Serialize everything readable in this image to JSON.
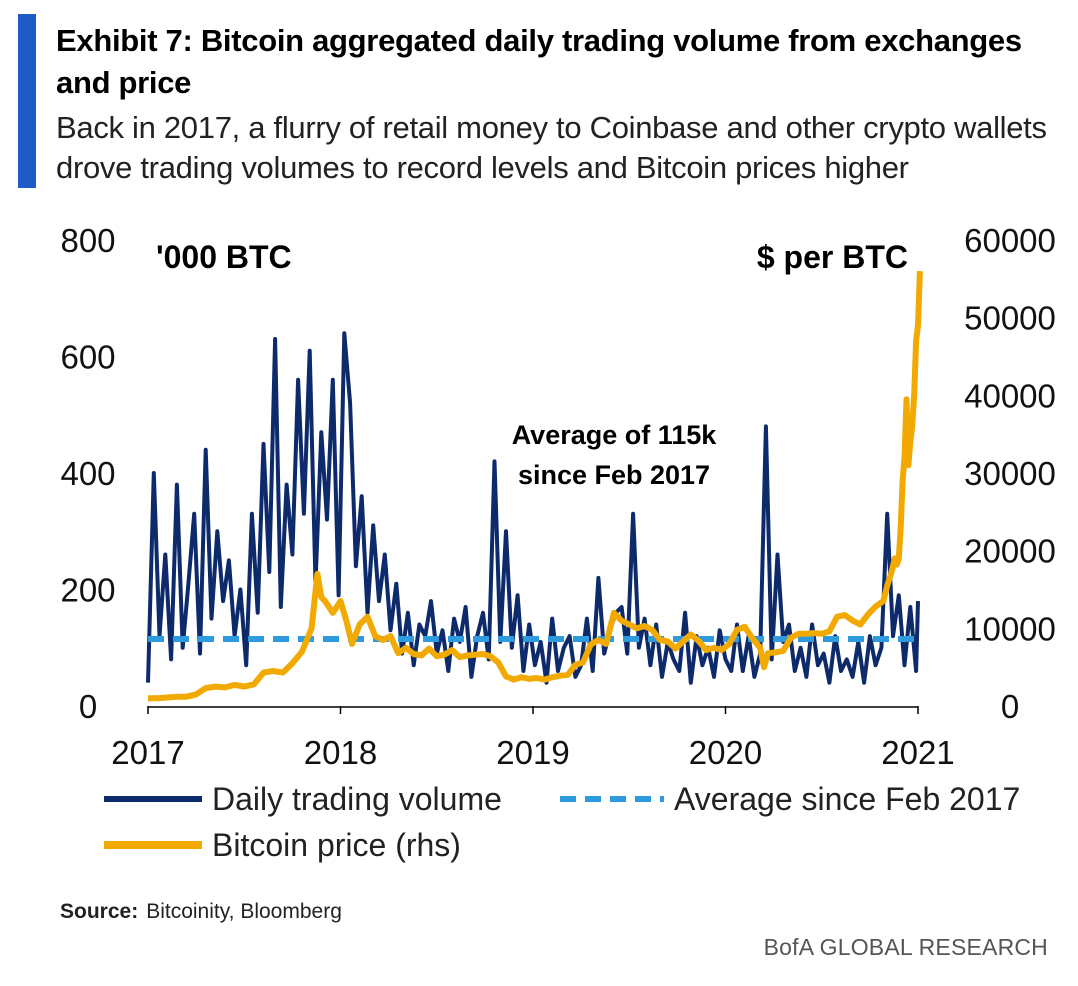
{
  "header": {
    "title": "Exhibit 7: Bitcoin aggregated daily trading volume from exchanges and price",
    "subtitle": "Back in 2017, a flurry of retail money to Coinbase and other crypto wallets drove trading volumes to record levels and Bitcoin prices higher"
  },
  "colors": {
    "volume": "#0D2A6B",
    "average": "#2E9BDF",
    "price": "#F2A900",
    "accent": "#1F5BC6"
  },
  "chart_data": {
    "type": "line",
    "title": "Bitcoin aggregated daily trading volume from exchanges and price",
    "left_axis_label": "'000 BTC",
    "right_axis_label": "$ per BTC",
    "ylim_left": [
      0,
      800
    ],
    "ylim_right": [
      0,
      60000
    ],
    "left_ticks": [
      "0",
      "200",
      "400",
      "600",
      "800"
    ],
    "right_ticks": [
      "0",
      "10000",
      "20000",
      "30000",
      "40000",
      "50000",
      "60000"
    ],
    "x_ticks": [
      "2017",
      "2018",
      "2019",
      "2020",
      "2021"
    ],
    "xlim": [
      2017.0,
      2021.0
    ],
    "annotation": {
      "line1": "Average of 115k",
      "line2": "since Feb 2017"
    },
    "series": [
      {
        "name": "Daily trading volume",
        "axis": "left",
        "style": "solid",
        "x": [
          2017.0,
          2017.03,
          2017.06,
          2017.09,
          2017.12,
          2017.15,
          2017.18,
          2017.21,
          2017.24,
          2017.27,
          2017.3,
          2017.33,
          2017.36,
          2017.39,
          2017.42,
          2017.45,
          2017.48,
          2017.51,
          2017.54,
          2017.57,
          2017.6,
          2017.63,
          2017.66,
          2017.69,
          2017.72,
          2017.75,
          2017.78,
          2017.81,
          2017.84,
          2017.87,
          2017.9,
          2017.93,
          2017.96,
          2017.99,
          2018.02,
          2018.05,
          2018.08,
          2018.11,
          2018.14,
          2018.17,
          2018.2,
          2018.23,
          2018.26,
          2018.29,
          2018.32,
          2018.35,
          2018.38,
          2018.41,
          2018.44,
          2018.47,
          2018.5,
          2018.53,
          2018.56,
          2018.59,
          2018.62,
          2018.65,
          2018.68,
          2018.71,
          2018.74,
          2018.77,
          2018.8,
          2018.83,
          2018.86,
          2018.89,
          2018.92,
          2018.95,
          2018.98,
          2019.01,
          2019.04,
          2019.07,
          2019.1,
          2019.13,
          2019.16,
          2019.19,
          2019.22,
          2019.25,
          2019.28,
          2019.31,
          2019.34,
          2019.37,
          2019.4,
          2019.43,
          2019.46,
          2019.49,
          2019.52,
          2019.55,
          2019.58,
          2019.61,
          2019.64,
          2019.67,
          2019.7,
          2019.73,
          2019.76,
          2019.79,
          2019.82,
          2019.85,
          2019.88,
          2019.91,
          2019.94,
          2019.97,
          2020.0,
          2020.03,
          2020.06,
          2020.09,
          2020.12,
          2020.15,
          2020.18,
          2020.21,
          2020.24,
          2020.27,
          2020.3,
          2020.33,
          2020.36,
          2020.39,
          2020.42,
          2020.45,
          2020.48,
          2020.51,
          2020.54,
          2020.57,
          2020.6,
          2020.63,
          2020.66,
          2020.69,
          2020.72,
          2020.75,
          2020.78,
          2020.81,
          2020.84,
          2020.87,
          2020.9,
          2020.93,
          2020.96,
          2020.99,
          2021.0
        ],
        "values": [
          40,
          400,
          120,
          260,
          80,
          380,
          100,
          210,
          330,
          90,
          440,
          150,
          300,
          180,
          250,
          120,
          200,
          70,
          330,
          160,
          450,
          230,
          630,
          170,
          380,
          260,
          560,
          330,
          610,
          210,
          470,
          320,
          560,
          190,
          640,
          520,
          240,
          360,
          160,
          310,
          180,
          260,
          130,
          210,
          90,
          160,
          70,
          140,
          120,
          180,
          90,
          130,
          60,
          150,
          110,
          170,
          50,
          120,
          160,
          80,
          420,
          110,
          300,
          100,
          190,
          60,
          140,
          70,
          110,
          40,
          150,
          60,
          100,
          120,
          50,
          70,
          150,
          60,
          220,
          90,
          130,
          160,
          170,
          90,
          330,
          100,
          150,
          70,
          140,
          50,
          110,
          80,
          60,
          160,
          40,
          120,
          70,
          100,
          50,
          130,
          80,
          60,
          140,
          60,
          120,
          50,
          90,
          480,
          80,
          260,
          110,
          140,
          60,
          100,
          50,
          140,
          70,
          90,
          40,
          120,
          60,
          80,
          50,
          110,
          40,
          120,
          70,
          100,
          330,
          120,
          190,
          70,
          170,
          60,
          180
        ]
      },
      {
        "name": "Average since Feb 2017",
        "axis": "left",
        "style": "dashed",
        "x": [
          2017.0,
          2021.0
        ],
        "values": [
          115,
          115
        ]
      },
      {
        "name": "Bitcoin price (rhs)",
        "axis": "right",
        "style": "solid",
        "x": [
          2017.0,
          2017.05,
          2017.1,
          2017.15,
          2017.2,
          2017.25,
          2017.3,
          2017.35,
          2017.4,
          2017.45,
          2017.5,
          2017.55,
          2017.6,
          2017.65,
          2017.7,
          2017.75,
          2017.8,
          2017.85,
          2017.88,
          2017.9,
          2017.92,
          2017.96,
          2018.0,
          2018.03,
          2018.06,
          2018.1,
          2018.14,
          2018.18,
          2018.22,
          2018.26,
          2018.3,
          2018.34,
          2018.38,
          2018.42,
          2018.46,
          2018.5,
          2018.54,
          2018.58,
          2018.62,
          2018.66,
          2018.7,
          2018.74,
          2018.78,
          2018.82,
          2018.86,
          2018.9,
          2018.94,
          2018.98,
          2019.02,
          2019.06,
          2019.1,
          2019.14,
          2019.18,
          2019.22,
          2019.26,
          2019.3,
          2019.34,
          2019.38,
          2019.42,
          2019.46,
          2019.5,
          2019.54,
          2019.58,
          2019.62,
          2019.66,
          2019.7,
          2019.74,
          2019.78,
          2019.82,
          2019.86,
          2019.9,
          2019.94,
          2019.98,
          2020.02,
          2020.06,
          2020.1,
          2020.14,
          2020.18,
          2020.2,
          2020.22,
          2020.26,
          2020.3,
          2020.34,
          2020.38,
          2020.42,
          2020.46,
          2020.5,
          2020.54,
          2020.58,
          2020.62,
          2020.66,
          2020.7,
          2020.74,
          2020.78,
          2020.82,
          2020.84,
          2020.86,
          2020.88,
          2020.89,
          2020.9,
          2020.91,
          2020.92,
          2020.93,
          2020.94,
          2020.95,
          2020.96,
          2020.97,
          2020.98,
          2020.99,
          2021.0,
          2021.01
        ],
        "values": [
          1000,
          1000,
          1100,
          1200,
          1200,
          1500,
          2300,
          2500,
          2400,
          2700,
          2500,
          2800,
          4300,
          4500,
          4300,
          5500,
          7000,
          10000,
          17000,
          14000,
          13500,
          12000,
          13500,
          11000,
          8000,
          10500,
          11500,
          9000,
          8500,
          9000,
          6800,
          7500,
          6700,
          6500,
          7400,
          6400,
          6600,
          7200,
          6300,
          6500,
          6600,
          6700,
          6400,
          5600,
          3800,
          3400,
          3700,
          3500,
          3600,
          3400,
          3700,
          3900,
          4000,
          5300,
          5600,
          7900,
          8500,
          8000,
          12000,
          11000,
          10500,
          10000,
          10300,
          9800,
          8500,
          8300,
          7400,
          8300,
          9200,
          8400,
          7200,
          7500,
          7200,
          8000,
          9800,
          10200,
          8700,
          7500,
          5000,
          6800,
          6900,
          7100,
          8800,
          9300,
          9300,
          9400,
          9300,
          9600,
          11500,
          11700,
          11000,
          10500,
          11800,
          12800,
          13500,
          15500,
          17000,
          19000,
          18200,
          19000,
          23000,
          29000,
          32000,
          39500,
          31000,
          34000,
          36000,
          40000,
          47000,
          49000,
          56000
        ]
      }
    ]
  },
  "legend": {
    "volume": "Daily trading volume",
    "average": "Average since Feb 2017",
    "price": "Bitcoin price (rhs)"
  },
  "footer": {
    "source_label": "Source:",
    "source_text": "Bitcoinity, Bloomberg",
    "brand": "BofA GLOBAL RESEARCH"
  }
}
